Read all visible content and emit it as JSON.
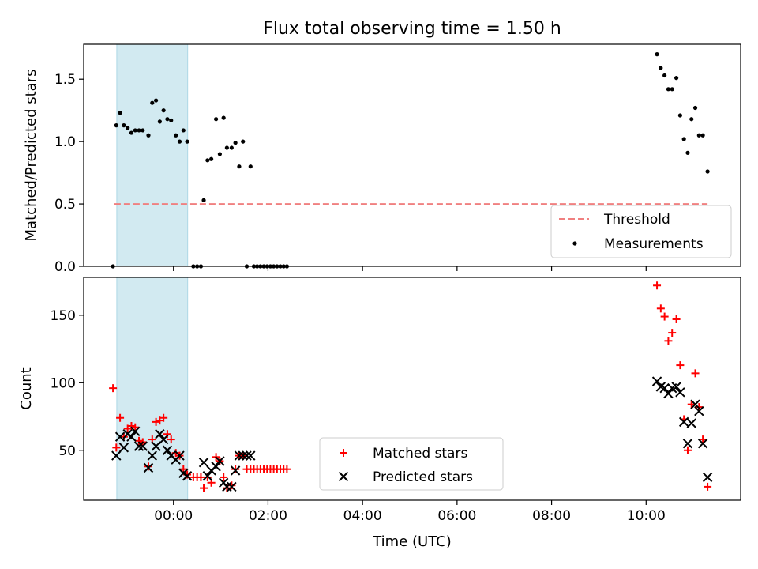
{
  "title": "Flux total observing time = 1.50 h",
  "colors": {
    "threshold": "#f08080",
    "measurement": "#000000",
    "matched": "#ff0000",
    "predicted": "#000000",
    "shade": "#add8e6"
  },
  "chart_data": [
    {
      "type": "scatter",
      "ylabel": "Matched/Predicted stars",
      "xlabel": "",
      "x_unit": "hours (UTC) relative to 00:00",
      "xlim": [
        -1.9,
        12.0
      ],
      "ylim": [
        0,
        1.78
      ],
      "yticks": [
        0.0,
        0.5,
        1.0,
        1.5
      ],
      "ytick_labels": [
        "0.0",
        "0.5",
        "1.0",
        "1.5"
      ],
      "shaded_span": [
        -1.2,
        0.3
      ],
      "legend": {
        "position": "lower-right",
        "entries": [
          "Threshold",
          "Measurements"
        ]
      },
      "threshold": {
        "name": "Threshold",
        "y": 0.5,
        "x_range": [
          -1.25,
          11.3
        ]
      },
      "series": [
        {
          "name": "Measurements",
          "marker": "dot",
          "points": [
            [
              -1.28,
              0.0
            ],
            [
              -1.21,
              1.13
            ],
            [
              -1.13,
              1.23
            ],
            [
              -1.05,
              1.13
            ],
            [
              -0.97,
              1.11
            ],
            [
              -0.89,
              1.07
            ],
            [
              -0.81,
              1.09
            ],
            [
              -0.73,
              1.09
            ],
            [
              -0.65,
              1.09
            ],
            [
              -0.53,
              1.05
            ],
            [
              -0.45,
              1.31
            ],
            [
              -0.37,
              1.33
            ],
            [
              -0.29,
              1.16
            ],
            [
              -0.21,
              1.25
            ],
            [
              -0.13,
              1.18
            ],
            [
              -0.05,
              1.17
            ],
            [
              0.05,
              1.05
            ],
            [
              0.13,
              1.0
            ],
            [
              0.21,
              1.09
            ],
            [
              0.29,
              1.0
            ],
            [
              0.42,
              0.0
            ],
            [
              0.5,
              0.0
            ],
            [
              0.58,
              0.0
            ],
            [
              0.64,
              0.53
            ],
            [
              0.72,
              0.85
            ],
            [
              0.8,
              0.86
            ],
            [
              0.9,
              1.18
            ],
            [
              0.98,
              0.9
            ],
            [
              1.06,
              1.19
            ],
            [
              1.13,
              0.95
            ],
            [
              1.23,
              0.95
            ],
            [
              1.31,
              0.99
            ],
            [
              1.39,
              0.8
            ],
            [
              1.47,
              1.0
            ],
            [
              1.55,
              0.0
            ],
            [
              1.63,
              0.8
            ],
            [
              1.7,
              0.0
            ],
            [
              1.77,
              0.0
            ],
            [
              1.84,
              0.0
            ],
            [
              1.91,
              0.0
            ],
            [
              1.98,
              0.0
            ],
            [
              2.05,
              0.0
            ],
            [
              2.12,
              0.0
            ],
            [
              2.19,
              0.0
            ],
            [
              2.26,
              0.0
            ],
            [
              2.33,
              0.0
            ],
            [
              2.4,
              0.0
            ],
            [
              10.23,
              1.7
            ],
            [
              10.31,
              1.59
            ],
            [
              10.39,
              1.53
            ],
            [
              10.47,
              1.42
            ],
            [
              10.55,
              1.42
            ],
            [
              10.64,
              1.51
            ],
            [
              10.72,
              1.21
            ],
            [
              10.8,
              1.02
            ],
            [
              10.88,
              0.91
            ],
            [
              10.96,
              1.18
            ],
            [
              11.04,
              1.27
            ],
            [
              11.12,
              1.05
            ],
            [
              11.2,
              1.05
            ],
            [
              11.3,
              0.76
            ]
          ]
        }
      ]
    },
    {
      "type": "scatter",
      "ylabel": "Count",
      "xlabel": "Time (UTC)",
      "x_unit": "hours (UTC) relative to 00:00",
      "xlim": [
        -1.9,
        12.0
      ],
      "ylim": [
        13,
        178
      ],
      "yticks": [
        50,
        100,
        150
      ],
      "ytick_labels": [
        "50",
        "100",
        "150"
      ],
      "xticks": [
        0,
        2,
        4,
        6,
        8,
        10
      ],
      "xtick_labels": [
        "00:00",
        "02:00",
        "04:00",
        "06:00",
        "08:00",
        "10:00"
      ],
      "shaded_span": [
        -1.2,
        0.3
      ],
      "legend": {
        "position": "lower-center",
        "entries": [
          "Matched stars",
          "Predicted stars"
        ]
      },
      "series": [
        {
          "name": "Matched stars",
          "marker": "plus",
          "points": [
            [
              -1.28,
              96
            ],
            [
              -1.21,
              52
            ],
            [
              -1.13,
              74
            ],
            [
              -1.05,
              60
            ],
            [
              -0.97,
              66
            ],
            [
              -0.89,
              68
            ],
            [
              -0.81,
              67
            ],
            [
              -0.73,
              57
            ],
            [
              -0.65,
              56
            ],
            [
              -0.53,
              38
            ],
            [
              -0.45,
              58
            ],
            [
              -0.37,
              71
            ],
            [
              -0.29,
              72
            ],
            [
              -0.21,
              74
            ],
            [
              -0.13,
              62
            ],
            [
              -0.05,
              58
            ],
            [
              0.05,
              48
            ],
            [
              0.13,
              46
            ],
            [
              0.21,
              36
            ],
            [
              0.29,
              32
            ],
            [
              0.42,
              30
            ],
            [
              0.5,
              30
            ],
            [
              0.58,
              30
            ],
            [
              0.64,
              22
            ],
            [
              0.72,
              30
            ],
            [
              0.8,
              26
            ],
            [
              0.9,
              45
            ],
            [
              0.98,
              42
            ],
            [
              1.06,
              30
            ],
            [
              1.13,
              22
            ],
            [
              1.23,
              24
            ],
            [
              1.31,
              36
            ],
            [
              1.39,
              46
            ],
            [
              1.47,
              46
            ],
            [
              1.55,
              36
            ],
            [
              1.63,
              36
            ],
            [
              1.7,
              36
            ],
            [
              1.77,
              36
            ],
            [
              1.84,
              36
            ],
            [
              1.91,
              36
            ],
            [
              1.98,
              36
            ],
            [
              2.05,
              36
            ],
            [
              2.12,
              36
            ],
            [
              2.19,
              36
            ],
            [
              2.26,
              36
            ],
            [
              2.33,
              36
            ],
            [
              2.4,
              36
            ],
            [
              10.23,
              172
            ],
            [
              10.31,
              155
            ],
            [
              10.39,
              149
            ],
            [
              10.47,
              131
            ],
            [
              10.55,
              137
            ],
            [
              10.64,
              147
            ],
            [
              10.72,
              113
            ],
            [
              10.8,
              73
            ],
            [
              10.88,
              50
            ],
            [
              10.96,
              84
            ],
            [
              11.04,
              107
            ],
            [
              11.12,
              82
            ],
            [
              11.2,
              58
            ],
            [
              11.3,
              23
            ]
          ]
        },
        {
          "name": "Predicted stars",
          "marker": "x",
          "points": [
            [
              -1.21,
              46
            ],
            [
              -1.13,
              60
            ],
            [
              -1.05,
              52
            ],
            [
              -0.97,
              62
            ],
            [
              -0.89,
              60
            ],
            [
              -0.81,
              64
            ],
            [
              -0.73,
              53
            ],
            [
              -0.65,
              53
            ],
            [
              -0.53,
              37
            ],
            [
              -0.45,
              46
            ],
            [
              -0.37,
              53
            ],
            [
              -0.29,
              62
            ],
            [
              -0.21,
              58
            ],
            [
              -0.13,
              50
            ],
            [
              -0.05,
              46
            ],
            [
              0.05,
              43
            ],
            [
              0.13,
              46
            ],
            [
              0.21,
              33
            ],
            [
              0.29,
              31
            ],
            [
              0.64,
              41
            ],
            [
              0.72,
              31
            ],
            [
              0.8,
              35
            ],
            [
              0.9,
              38
            ],
            [
              0.98,
              42
            ],
            [
              1.06,
              26
            ],
            [
              1.13,
              23
            ],
            [
              1.23,
              23
            ],
            [
              1.31,
              35
            ],
            [
              1.39,
              46
            ],
            [
              1.47,
              46
            ],
            [
              1.55,
              46
            ],
            [
              1.63,
              46
            ],
            [
              10.23,
              101
            ],
            [
              10.31,
              97
            ],
            [
              10.39,
              96
            ],
            [
              10.47,
              92
            ],
            [
              10.55,
              96
            ],
            [
              10.64,
              97
            ],
            [
              10.72,
              93
            ],
            [
              10.8,
              71
            ],
            [
              10.88,
              55
            ],
            [
              10.96,
              70
            ],
            [
              11.04,
              84
            ],
            [
              11.12,
              79
            ],
            [
              11.2,
              55
            ],
            [
              11.3,
              30
            ]
          ]
        }
      ]
    }
  ]
}
